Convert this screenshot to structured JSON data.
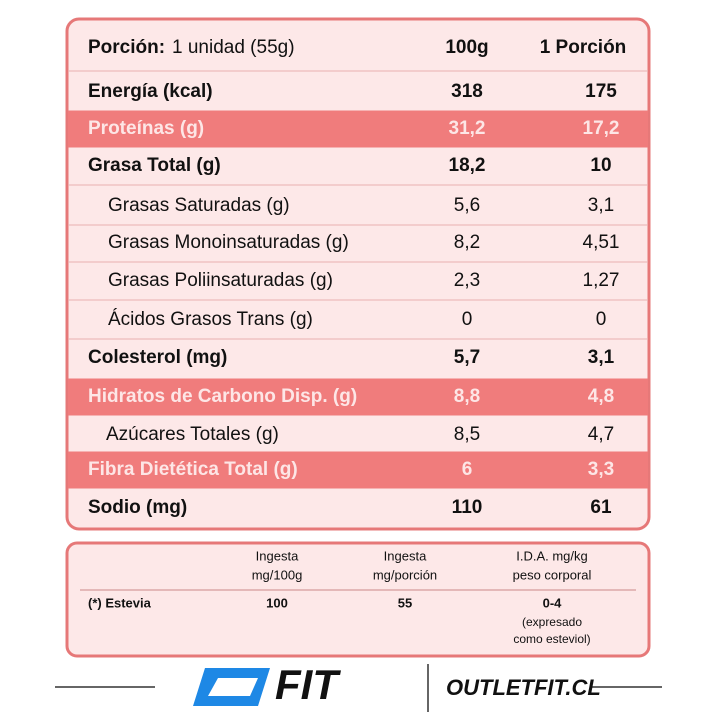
{
  "table": {
    "header": {
      "label": "Porción:",
      "serving": "1 unidad (55g)",
      "col1": "100g",
      "col2": "1 Porción"
    },
    "rows": [
      [
        "Energía (kcal)",
        "318",
        "175"
      ],
      [
        "Proteínas (g)",
        "31,2",
        "17,2"
      ],
      [
        "Grasa Total (g)",
        "18,2",
        "10"
      ],
      [
        "Grasas Saturadas (g)",
        "5,6",
        "3,1"
      ],
      [
        "Grasas Monoinsaturadas (g)",
        "8,2",
        "4,51"
      ],
      [
        "Grasas Poliinsaturadas (g)",
        "2,3",
        "1,27"
      ],
      [
        "Ácidos Grasos Trans (g)",
        "0",
        "0"
      ],
      [
        "Colesterol (mg)",
        "5,7",
        "3,1"
      ],
      [
        "Hidratos de Carbono Disp. (g)",
        "8,8",
        "4,8"
      ],
      [
        "Azúcares Totales (g)",
        "8,5",
        "4,7"
      ],
      [
        "Fibra Dietética Total (g)",
        "6",
        "3,3"
      ],
      [
        "Sodio (mg)",
        "110",
        "61"
      ]
    ]
  },
  "sweetener": {
    "headers": [
      [
        "Ingesta",
        "mg/100g"
      ],
      [
        "Ingesta",
        "mg/porción"
      ],
      [
        "I.D.A. mg/kg",
        "peso corporal"
      ]
    ],
    "row": {
      "label": "(*) Estevia",
      "values": [
        "100",
        "55",
        "0-4"
      ],
      "note": [
        "(expresado",
        "como esteviol)"
      ]
    }
  },
  "footer": {
    "logo": "FIT",
    "site": "OUTLETFIT.CL"
  }
}
